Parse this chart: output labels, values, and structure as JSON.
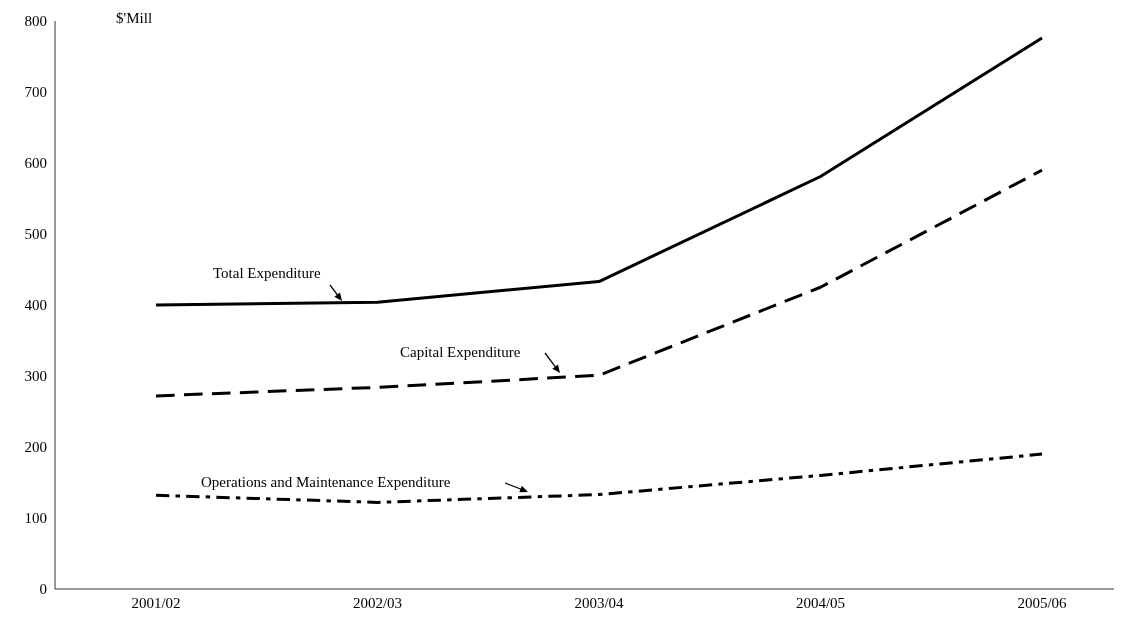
{
  "chart_data": {
    "type": "line",
    "ylabel": "$'Mill",
    "categories": [
      "2001/02",
      "2002/03",
      "2003/04",
      "2004/05",
      "2005/06"
    ],
    "series": [
      {
        "name": "Total Expenditure",
        "color": "#000000",
        "line_style": "solid",
        "values": [
          400,
          404,
          433,
          581,
          776
        ]
      },
      {
        "name": "Capital Expenditure",
        "color": "#000000",
        "line_style": "dashed",
        "values": [
          272,
          284,
          301,
          425,
          590
        ]
      },
      {
        "name": "Operations and Maintenance Expenditure",
        "color": "#000000",
        "line_style": "dashdot",
        "values": [
          132,
          122,
          133,
          160,
          190
        ]
      }
    ],
    "ylim": [
      0,
      800
    ],
    "yticks": [
      0,
      100,
      200,
      300,
      400,
      500,
      600,
      700,
      800
    ],
    "grid": false,
    "legend": false,
    "marker": "none"
  }
}
